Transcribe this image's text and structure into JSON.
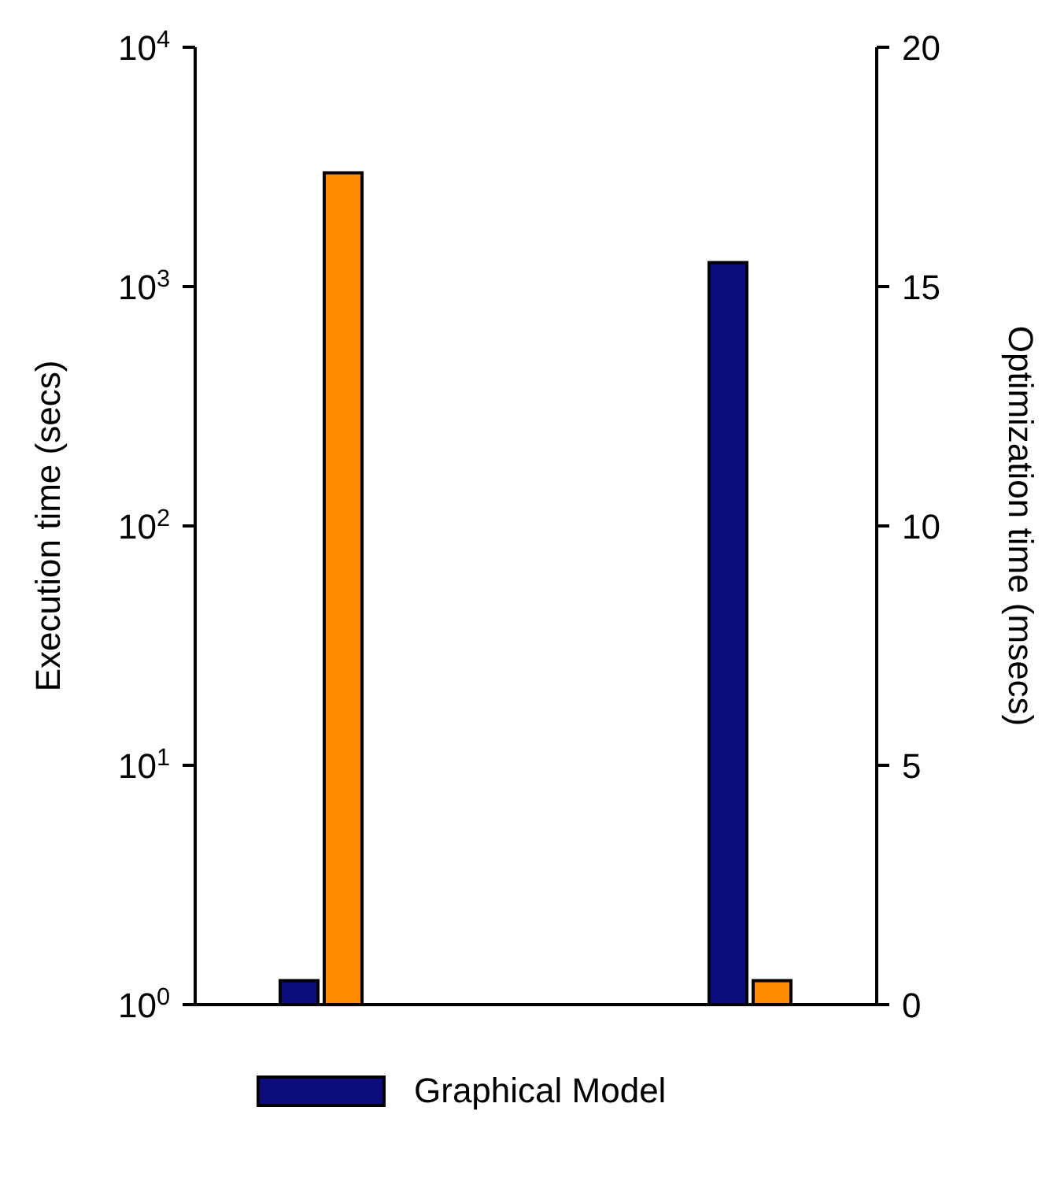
{
  "chart_data": {
    "type": "bar",
    "categories": [
      null,
      null
    ],
    "ylabel": "Execution time (secs)",
    "y2label": "Optimization time (msecs)",
    "log": "y",
    "ylim": [
      1,
      10000
    ],
    "yticks": [
      {
        "value": 1,
        "label": "10$^{0}$"
      },
      {
        "value": 10,
        "label": "10$^{1}$"
      },
      {
        "value": 100,
        "label": "10$^{2}$"
      },
      {
        "value": 1000,
        "label": "10$^{3}$"
      },
      {
        "value": 10000,
        "label": "10$^{4}$"
      }
    ],
    "y2lim": [
      0,
      20
    ],
    "y2ticks": [
      0,
      5,
      10,
      15,
      20
    ],
    "legend": "bottom",
    "grid": false,
    "series": [
      {
        "name": "Graphical Model",
        "color": "#0c0c7c",
        "values": [
          1.26,
          null
        ]
      },
      {
        "color": "#ff8c00",
        "values": [
          2990,
          null
        ]
      },
      {
        "color": "#0c0c7c",
        "axis": "y2",
        "values": [
          null,
          15.5
        ]
      },
      {
        "color": "#ff8c00",
        "axis": "y2",
        "values": [
          null,
          0.5
        ]
      }
    ]
  }
}
